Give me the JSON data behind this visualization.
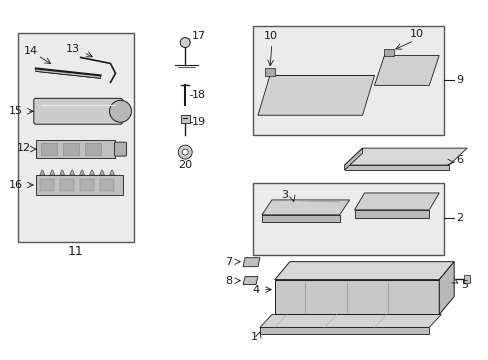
{
  "bg_color": "#ffffff",
  "dark": "#1a1a1a",
  "gray_fill": "#e8e8e8",
  "gray_fill2": "#d4d4d4",
  "box_edge": "#444444",
  "fs_label": 8,
  "fs_num": 9
}
